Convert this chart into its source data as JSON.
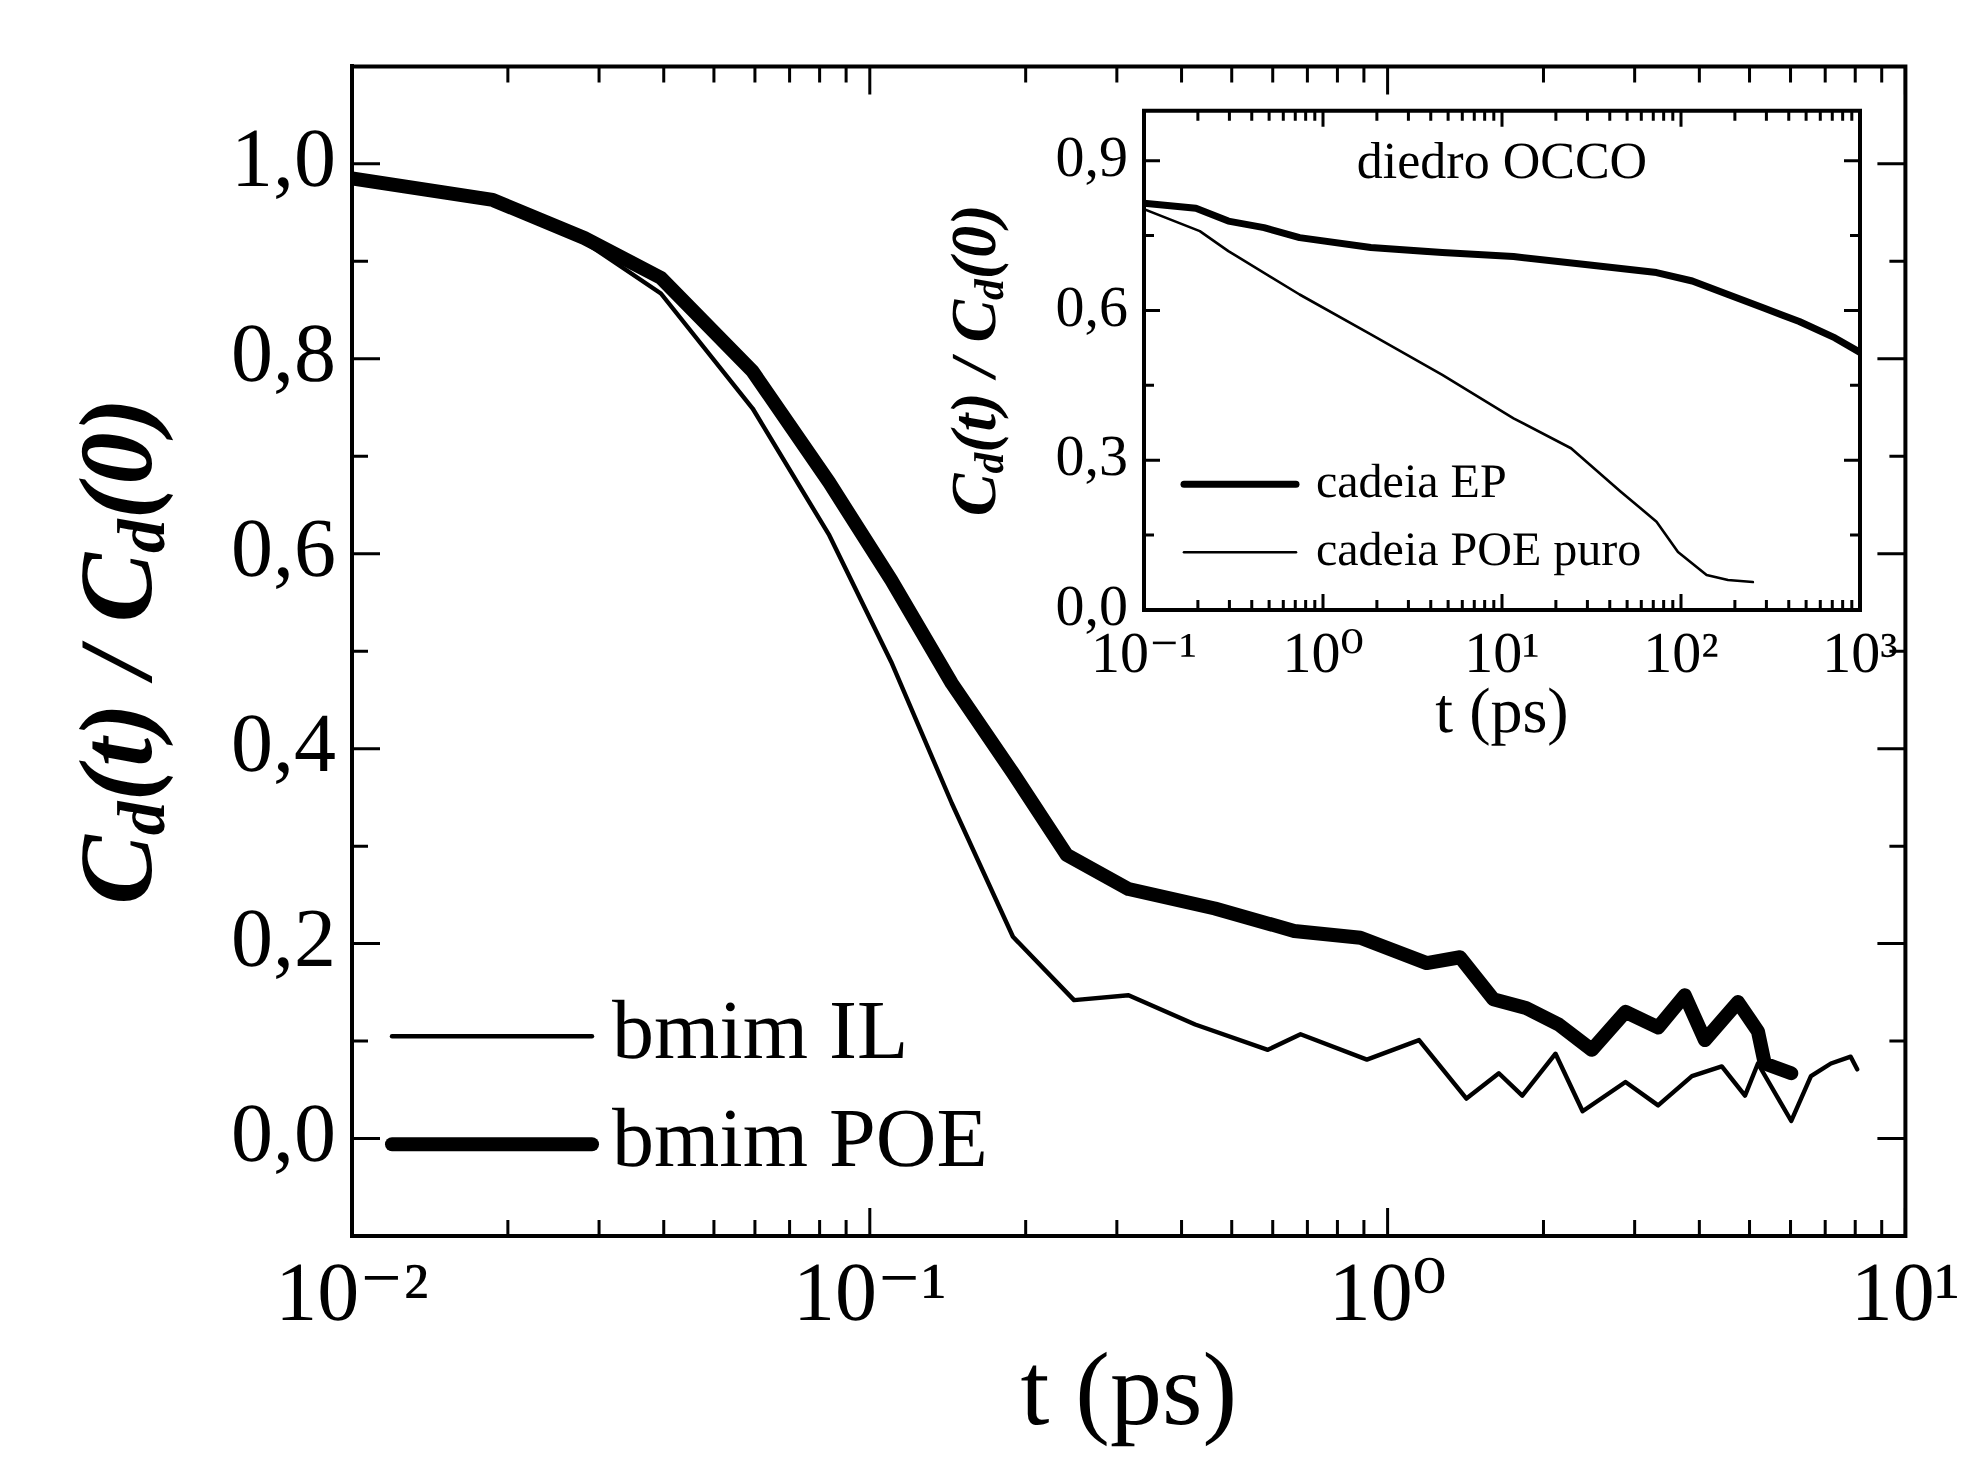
{
  "chart_data": [
    {
      "type": "line",
      "xlabel": "t (ps)",
      "ylabel": "C$_{d}$(t) / C$_{d}$(0)",
      "log": "x",
      "legend": "bottom left",
      "marker": "none",
      "line_style": "solid",
      "xlim": [
        0.01,
        10
      ],
      "ylim": [
        -0.1,
        1.1
      ],
      "xticks": [
        {
          "value": 0.01,
          "label": "10⁻²"
        },
        {
          "value": 0.02,
          "label": null
        },
        {
          "value": 0.03,
          "label": null
        },
        {
          "value": 0.04,
          "label": null
        },
        {
          "value": 0.05,
          "label": null
        },
        {
          "value": 0.06,
          "label": null
        },
        {
          "value": 0.07,
          "label": null
        },
        {
          "value": 0.08,
          "label": null
        },
        {
          "value": 0.09,
          "label": null
        },
        {
          "value": 0.1,
          "label": "10⁻¹"
        },
        {
          "value": 0.2,
          "label": null
        },
        {
          "value": 0.3,
          "label": null
        },
        {
          "value": 0.4,
          "label": null
        },
        {
          "value": 0.5,
          "label": null
        },
        {
          "value": 0.6,
          "label": null
        },
        {
          "value": 0.7,
          "label": null
        },
        {
          "value": 0.8,
          "label": null
        },
        {
          "value": 0.9,
          "label": null
        },
        {
          "value": 1,
          "label": "10⁰"
        },
        {
          "value": 2,
          "label": null
        },
        {
          "value": 3,
          "label": null
        },
        {
          "value": 4,
          "label": null
        },
        {
          "value": 5,
          "label": null
        },
        {
          "value": 6,
          "label": null
        },
        {
          "value": 7,
          "label": null
        },
        {
          "value": 8,
          "label": null
        },
        {
          "value": 9,
          "label": null
        },
        {
          "value": 10,
          "label": "10¹"
        }
      ],
      "yticks": [
        {
          "value": 0,
          "label": "0,0"
        },
        {
          "value": 0.1,
          "label": null
        },
        {
          "value": 0.2,
          "label": "0,2"
        },
        {
          "value": 0.3,
          "label": null
        },
        {
          "value": 0.4,
          "label": "0,4"
        },
        {
          "value": 0.5,
          "label": null
        },
        {
          "value": 0.6,
          "label": "0,6"
        },
        {
          "value": 0.7,
          "label": null
        },
        {
          "value": 0.8,
          "label": "0,8"
        },
        {
          "value": 0.9,
          "label": null
        },
        {
          "value": 1,
          "label": "1,0"
        }
      ],
      "series": [
        {
          "name": "bmim IL",
          "color": "#000000",
          "x": [
            0.01,
            0.0187,
            0.0281,
            0.0395,
            0.0594,
            0.0835,
            0.11,
            0.144,
            0.189,
            0.248,
            0.316,
            0.425,
            0.587,
            0.679,
            0.912,
            1.15,
            1.42,
            1.64,
            1.82,
            2.11,
            2.38,
            2.88,
            3.33,
            3.87,
            4.42,
            4.9,
            5.19,
            6.02,
            6.57,
            7.18,
            7.84,
            8.07
          ],
          "values": [
            0.985,
            0.962,
            0.92,
            0.867,
            0.749,
            0.619,
            0.489,
            0.344,
            0.207,
            0.142,
            0.147,
            0.117,
            0.091,
            0.107,
            0.081,
            0.101,
            0.041,
            0.067,
            0.044,
            0.087,
            0.028,
            0.058,
            0.034,
            0.064,
            0.074,
            0.044,
            0.077,
            0.018,
            0.064,
            0.077,
            0.084,
            0.071
          ]
        },
        {
          "name": "bmim POE",
          "color": "#000000",
          "x": [
            0.01,
            0.0187,
            0.0281,
            0.0395,
            0.0594,
            0.0835,
            0.11,
            0.144,
            0.189,
            0.24,
            0.316,
            0.464,
            0.66,
            0.886,
            1.19,
            1.38,
            1.6,
            1.85,
            2.14,
            2.48,
            2.88,
            3.33,
            3.75,
            4.1,
            4.75,
            5.19,
            5.35,
            6.02
          ],
          "values": [
            0.985,
            0.963,
            0.924,
            0.883,
            0.787,
            0.673,
            0.573,
            0.467,
            0.375,
            0.291,
            0.256,
            0.236,
            0.213,
            0.206,
            0.18,
            0.186,
            0.143,
            0.134,
            0.117,
            0.091,
            0.13,
            0.114,
            0.147,
            0.101,
            0.14,
            0.11,
            0.077,
            0.067
          ]
        }
      ]
    },
    {
      "type": "line",
      "title": "diedro OCCO",
      "xlabel": "t (ps)",
      "ylabel": "C$_{d}$(t) / C$_{d}$(0)",
      "log": "x",
      "legend": "bottom left",
      "marker": "none",
      "line_style": "solid",
      "xlim": [
        0.1,
        1000
      ],
      "ylim": [
        0,
        1
      ],
      "xticks": [
        {
          "value": 0.1,
          "label": "10⁻¹"
        },
        {
          "value": 0.2,
          "label": null
        },
        {
          "value": 0.3,
          "label": null
        },
        {
          "value": 0.4,
          "label": null
        },
        {
          "value": 0.5,
          "label": null
        },
        {
          "value": 0.6,
          "label": null
        },
        {
          "value": 0.7,
          "label": null
        },
        {
          "value": 0.8,
          "label": null
        },
        {
          "value": 0.9,
          "label": null
        },
        {
          "value": 1,
          "label": "10⁰"
        },
        {
          "value": 2,
          "label": null
        },
        {
          "value": 3,
          "label": null
        },
        {
          "value": 4,
          "label": null
        },
        {
          "value": 5,
          "label": null
        },
        {
          "value": 6,
          "label": null
        },
        {
          "value": 7,
          "label": null
        },
        {
          "value": 8,
          "label": null
        },
        {
          "value": 9,
          "label": null
        },
        {
          "value": 10,
          "label": "10¹"
        },
        {
          "value": 20,
          "label": null
        },
        {
          "value": 30,
          "label": null
        },
        {
          "value": 40,
          "label": null
        },
        {
          "value": 50,
          "label": null
        },
        {
          "value": 60,
          "label": null
        },
        {
          "value": 70,
          "label": null
        },
        {
          "value": 80,
          "label": null
        },
        {
          "value": 90,
          "label": null
        },
        {
          "value": 100,
          "label": "10²"
        },
        {
          "value": 200,
          "label": null
        },
        {
          "value": 300,
          "label": null
        },
        {
          "value": 400,
          "label": null
        },
        {
          "value": 500,
          "label": null
        },
        {
          "value": 600,
          "label": null
        },
        {
          "value": 700,
          "label": null
        },
        {
          "value": 800,
          "label": null
        },
        {
          "value": 900,
          "label": null
        },
        {
          "value": 1000,
          "label": "10³"
        }
      ],
      "yticks": [
        {
          "value": 0,
          "label": "0,0"
        },
        {
          "value": 0.15,
          "label": null
        },
        {
          "value": 0.3,
          "label": "0,3"
        },
        {
          "value": 0.45,
          "label": null
        },
        {
          "value": 0.6,
          "label": "0,6"
        },
        {
          "value": 0.75,
          "label": null
        },
        {
          "value": 0.9,
          "label": "0,9"
        }
      ],
      "series": [
        {
          "name": "cadeia EP",
          "color": "#000000",
          "x": [
            0.1,
            0.195,
            0.296,
            0.468,
            0.74,
            1.85,
            4.64,
            11.6,
            29.2,
            73,
            115.6,
            183,
            290,
            458,
            725,
            1000
          ],
          "values": [
            0.815,
            0.805,
            0.779,
            0.766,
            0.746,
            0.726,
            0.716,
            0.708,
            0.692,
            0.676,
            0.659,
            0.632,
            0.605,
            0.578,
            0.545,
            0.516
          ]
        },
        {
          "name": "cadeia POE puro",
          "color": "#000000",
          "x": [
            0.1,
            0.205,
            0.296,
            0.74,
            1.85,
            4.64,
            11.6,
            24.3,
            46.1,
            73,
            96.2,
            139,
            183,
            252
          ],
          "values": [
            0.803,
            0.759,
            0.719,
            0.632,
            0.552,
            0.471,
            0.384,
            0.324,
            0.237,
            0.177,
            0.116,
            0.07,
            0.06,
            0.056
          ]
        }
      ]
    }
  ]
}
